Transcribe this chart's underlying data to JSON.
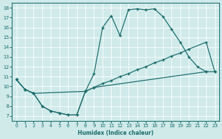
{
  "xlabel": "Humidex (Indice chaleur)",
  "background_color": "#d0eaea",
  "grid_color": "#b0d0d0",
  "line_color": "#1a6b6b",
  "xlim": [
    -0.5,
    23.5
  ],
  "ylim": [
    6.5,
    18.5
  ],
  "xticks": [
    0,
    1,
    2,
    3,
    4,
    5,
    6,
    7,
    8,
    9,
    10,
    11,
    12,
    13,
    14,
    15,
    16,
    17,
    18,
    19,
    20,
    21,
    22,
    23
  ],
  "yticks": [
    7,
    8,
    9,
    10,
    11,
    12,
    13,
    14,
    15,
    16,
    17,
    18
  ],
  "curve1_x": [
    0,
    1,
    2,
    3,
    4,
    5,
    6,
    7,
    8,
    9,
    10,
    11,
    12,
    13,
    14,
    15,
    16,
    17,
    18,
    19,
    20,
    21,
    22
  ],
  "curve1_y": [
    10.7,
    9.7,
    9.3,
    8.0,
    7.5,
    7.3,
    7.1,
    7.1,
    9.5,
    11.3,
    16.0,
    17.2,
    15.2,
    17.8,
    17.9,
    17.8,
    17.9,
    17.1,
    15.8,
    14.5,
    13.0,
    12.0,
    11.5
  ],
  "curve2_x": [
    0,
    1,
    2,
    8,
    9,
    10,
    11,
    12,
    13,
    14,
    15,
    16,
    17,
    18,
    19,
    20,
    22,
    23
  ],
  "curve2_y": [
    10.7,
    9.7,
    9.3,
    9.5,
    9.9,
    10.3,
    10.6,
    11.0,
    11.3,
    11.7,
    12.0,
    12.4,
    12.7,
    13.1,
    13.4,
    13.8,
    14.5,
    11.5
  ],
  "curve3_x": [
    0,
    1,
    2,
    3,
    4,
    5,
    6,
    7,
    8,
    9,
    22,
    23
  ],
  "curve3_y": [
    10.7,
    9.7,
    9.3,
    8.0,
    7.5,
    7.3,
    7.1,
    7.1,
    9.5,
    9.9,
    11.5,
    11.5
  ]
}
